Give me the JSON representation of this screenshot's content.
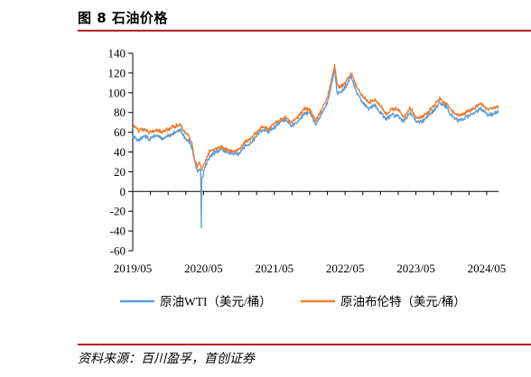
{
  "figure": {
    "title": "图 8 石油价格",
    "source": "资料来源：百川盈孚，首创证券"
  },
  "chart_data": {
    "type": "line",
    "title": "",
    "xlabel": "",
    "ylabel": "",
    "ylim": [
      -60,
      140
    ],
    "yticks": [
      -60,
      -40,
      -20,
      0,
      20,
      40,
      60,
      80,
      100,
      120,
      140
    ],
    "xlim": [
      "2019-05",
      "2024-07"
    ],
    "xticks": [
      "2019/05",
      "2020/05",
      "2021/05",
      "2022/05",
      "2023/05",
      "2024/05"
    ],
    "grid": false,
    "legend_position": "bottom",
    "series": [
      {
        "name": "原油WTI（美元/桶）",
        "color": "#5b9bd5",
        "points": [
          [
            "2019-05-01",
            56
          ],
          [
            "2019-06-01",
            52
          ],
          [
            "2019-07-01",
            56
          ],
          [
            "2019-08-01",
            53
          ],
          [
            "2019-09-01",
            57
          ],
          [
            "2019-10-01",
            53
          ],
          [
            "2019-11-01",
            56
          ],
          [
            "2019-12-01",
            59
          ],
          [
            "2020-01-06",
            62
          ],
          [
            "2020-01-31",
            52
          ],
          [
            "2020-02-15",
            52
          ],
          [
            "2020-03-01",
            45
          ],
          [
            "2020-03-15",
            32
          ],
          [
            "2020-03-30",
            20
          ],
          [
            "2020-04-10",
            23
          ],
          [
            "2020-04-17",
            18
          ],
          [
            "2020-04-20",
            -37
          ],
          [
            "2020-04-22",
            12
          ],
          [
            "2020-05-01",
            19
          ],
          [
            "2020-05-15",
            28
          ],
          [
            "2020-06-01",
            35
          ],
          [
            "2020-07-01",
            40
          ],
          [
            "2020-08-01",
            42
          ],
          [
            "2020-09-01",
            40
          ],
          [
            "2020-10-01",
            38
          ],
          [
            "2020-11-01",
            38
          ],
          [
            "2020-12-01",
            46
          ],
          [
            "2021-01-01",
            49
          ],
          [
            "2021-02-01",
            56
          ],
          [
            "2021-03-01",
            63
          ],
          [
            "2021-04-01",
            60
          ],
          [
            "2021-05-01",
            65
          ],
          [
            "2021-06-01",
            70
          ],
          [
            "2021-07-01",
            73
          ],
          [
            "2021-08-01",
            66
          ],
          [
            "2021-09-01",
            71
          ],
          [
            "2021-10-01",
            78
          ],
          [
            "2021-11-01",
            80
          ],
          [
            "2021-12-01",
            68
          ],
          [
            "2022-01-01",
            78
          ],
          [
            "2022-02-01",
            90
          ],
          [
            "2022-03-08",
            123
          ],
          [
            "2022-03-20",
            100
          ],
          [
            "2022-04-01",
            100
          ],
          [
            "2022-05-01",
            105
          ],
          [
            "2022-06-01",
            117
          ],
          [
            "2022-07-01",
            100
          ],
          [
            "2022-08-01",
            90
          ],
          [
            "2022-09-01",
            84
          ],
          [
            "2022-10-01",
            87
          ],
          [
            "2022-11-01",
            80
          ],
          [
            "2022-12-01",
            73
          ],
          [
            "2023-01-01",
            78
          ],
          [
            "2023-02-01",
            76
          ],
          [
            "2023-03-01",
            70
          ],
          [
            "2023-04-01",
            80
          ],
          [
            "2023-05-01",
            71
          ],
          [
            "2023-06-01",
            70
          ],
          [
            "2023-07-01",
            76
          ],
          [
            "2023-08-01",
            82
          ],
          [
            "2023-09-01",
            89
          ],
          [
            "2023-10-01",
            87
          ],
          [
            "2023-11-01",
            77
          ],
          [
            "2023-12-01",
            72
          ],
          [
            "2024-01-01",
            73
          ],
          [
            "2024-02-01",
            77
          ],
          [
            "2024-03-01",
            80
          ],
          [
            "2024-04-01",
            84
          ],
          [
            "2024-05-01",
            78
          ],
          [
            "2024-06-01",
            78
          ],
          [
            "2024-07-01",
            81
          ]
        ]
      },
      {
        "name": "原油布伦特（美元/桶）",
        "color": "#ed7d31",
        "points": [
          [
            "2019-05-01",
            67
          ],
          [
            "2019-06-01",
            62
          ],
          [
            "2019-07-01",
            63
          ],
          [
            "2019-08-01",
            59
          ],
          [
            "2019-09-01",
            62
          ],
          [
            "2019-10-01",
            60
          ],
          [
            "2019-11-01",
            63
          ],
          [
            "2019-12-01",
            66
          ],
          [
            "2020-01-06",
            67
          ],
          [
            "2020-01-31",
            58
          ],
          [
            "2020-02-15",
            57
          ],
          [
            "2020-03-01",
            50
          ],
          [
            "2020-03-15",
            33
          ],
          [
            "2020-03-30",
            25
          ],
          [
            "2020-04-10",
            30
          ],
          [
            "2020-04-22",
            20
          ],
          [
            "2020-05-01",
            27
          ],
          [
            "2020-05-15",
            33
          ],
          [
            "2020-06-01",
            40
          ],
          [
            "2020-07-01",
            43
          ],
          [
            "2020-08-01",
            45
          ],
          [
            "2020-09-01",
            42
          ],
          [
            "2020-10-01",
            40
          ],
          [
            "2020-11-01",
            42
          ],
          [
            "2020-12-01",
            50
          ],
          [
            "2021-01-01",
            53
          ],
          [
            "2021-02-01",
            60
          ],
          [
            "2021-03-01",
            66
          ],
          [
            "2021-04-01",
            63
          ],
          [
            "2021-05-01",
            68
          ],
          [
            "2021-06-01",
            73
          ],
          [
            "2021-07-01",
            75
          ],
          [
            "2021-08-01",
            70
          ],
          [
            "2021-09-01",
            75
          ],
          [
            "2021-10-01",
            84
          ],
          [
            "2021-11-01",
            82
          ],
          [
            "2021-12-01",
            72
          ],
          [
            "2022-01-01",
            82
          ],
          [
            "2022-02-01",
            95
          ],
          [
            "2022-03-08",
            128
          ],
          [
            "2022-03-20",
            110
          ],
          [
            "2022-04-01",
            105
          ],
          [
            "2022-05-01",
            110
          ],
          [
            "2022-06-01",
            120
          ],
          [
            "2022-07-01",
            105
          ],
          [
            "2022-08-01",
            96
          ],
          [
            "2022-09-01",
            90
          ],
          [
            "2022-10-01",
            93
          ],
          [
            "2022-11-01",
            87
          ],
          [
            "2022-12-01",
            78
          ],
          [
            "2023-01-01",
            84
          ],
          [
            "2023-02-01",
            83
          ],
          [
            "2023-03-01",
            75
          ],
          [
            "2023-04-01",
            85
          ],
          [
            "2023-05-01",
            75
          ],
          [
            "2023-06-01",
            75
          ],
          [
            "2023-07-01",
            80
          ],
          [
            "2023-08-01",
            86
          ],
          [
            "2023-09-01",
            94
          ],
          [
            "2023-10-01",
            90
          ],
          [
            "2023-11-01",
            82
          ],
          [
            "2023-12-01",
            77
          ],
          [
            "2024-01-01",
            78
          ],
          [
            "2024-02-01",
            82
          ],
          [
            "2024-03-01",
            85
          ],
          [
            "2024-04-01",
            89
          ],
          [
            "2024-05-01",
            83
          ],
          [
            "2024-06-01",
            84
          ],
          [
            "2024-07-01",
            86
          ]
        ]
      }
    ]
  }
}
